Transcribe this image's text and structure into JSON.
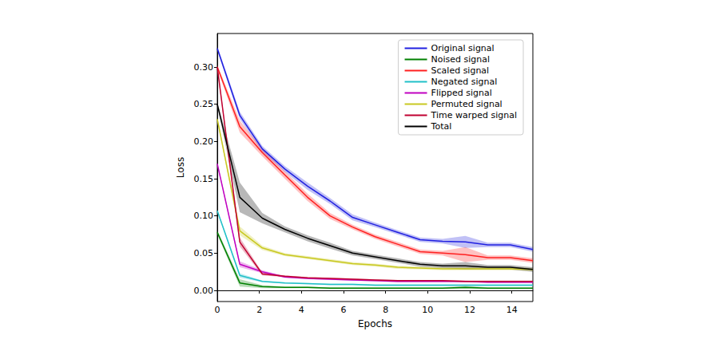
{
  "chart_data": {
    "type": "line",
    "x_label": "Epochs",
    "y_label": "Loss",
    "x": [
      0,
      1.07,
      2.14,
      3.21,
      4.29,
      5.36,
      6.43,
      7.5,
      8.57,
      9.64,
      10.71,
      11.79,
      12.86,
      13.93,
      15
    ],
    "xlim": [
      0,
      15
    ],
    "xticks": [
      0,
      2,
      4,
      6,
      8,
      10,
      12,
      14
    ],
    "ylim": [
      -0.015,
      0.345
    ],
    "yticks": [
      {
        "value": 0,
        "label": "0.00"
      },
      {
        "value": 0.05,
        "label": "0.05"
      },
      {
        "value": 0.1,
        "label": "0.10"
      },
      {
        "value": 0.15,
        "label": "0.15"
      },
      {
        "value": 0.2,
        "label": "0.20"
      },
      {
        "value": 0.25,
        "label": "0.25"
      },
      {
        "value": 0.3,
        "label": "0.30"
      }
    ],
    "grid": false,
    "legend": "upper right",
    "series": [
      {
        "name": "Original signal",
        "color": "#2020e0",
        "values": [
          0.325,
          0.235,
          0.19,
          0.163,
          0.14,
          0.12,
          0.098,
          0.088,
          0.078,
          0.068,
          0.066,
          0.065,
          0.061,
          0.061,
          0.055
        ],
        "errors": [
          0.003,
          0.005,
          0.004,
          0.004,
          0.005,
          0.004,
          0.004,
          0.003,
          0.003,
          0.003,
          0.003,
          0.008,
          0.003,
          0.003,
          0.003
        ]
      },
      {
        "name": "Noised signal",
        "color": "#008000",
        "values": [
          0.078,
          0.01,
          0.005,
          0.004,
          0.004,
          0.003,
          0.003,
          0.003,
          0.003,
          0.003,
          0.003,
          0.004,
          0.003,
          0.003,
          0.003
        ],
        "errors": [
          0.003,
          0.005,
          0.002,
          0.001,
          0.001,
          0.001,
          0.001,
          0.001,
          0.001,
          0.001,
          0.001,
          0.002,
          0.001,
          0.001,
          0.001
        ]
      },
      {
        "name": "Scaled signal",
        "color": "#ff2020",
        "values": [
          0.3,
          0.22,
          0.185,
          0.155,
          0.125,
          0.1,
          0.085,
          0.072,
          0.062,
          0.052,
          0.05,
          0.048,
          0.044,
          0.044,
          0.04
        ],
        "errors": [
          0.003,
          0.008,
          0.005,
          0.005,
          0.005,
          0.004,
          0.003,
          0.003,
          0.003,
          0.003,
          0.003,
          0.01,
          0.003,
          0.003,
          0.003
        ]
      },
      {
        "name": "Negated signal",
        "color": "#20c0c8",
        "values": [
          0.107,
          0.02,
          0.012,
          0.01,
          0.009,
          0.008,
          0.008,
          0.007,
          0.007,
          0.007,
          0.007,
          0.007,
          0.007,
          0.007,
          0.007
        ],
        "errors": [
          0.002,
          0.003,
          0.001,
          0.001,
          0.001,
          0.001,
          0.001,
          0.001,
          0.001,
          0.001,
          0.001,
          0.001,
          0.001,
          0.001,
          0.001
        ]
      },
      {
        "name": "Flipped signal",
        "color": "#c000c0",
        "values": [
          0.17,
          0.035,
          0.025,
          0.018,
          0.016,
          0.015,
          0.014,
          0.013,
          0.012,
          0.012,
          0.012,
          0.012,
          0.011,
          0.011,
          0.011
        ],
        "errors": [
          0.002,
          0.004,
          0.002,
          0.001,
          0.001,
          0.001,
          0.001,
          0.001,
          0.001,
          0.001,
          0.001,
          0.001,
          0.001,
          0.001,
          0.001
        ]
      },
      {
        "name": "Permuted signal",
        "color": "#c8c820",
        "values": [
          0.23,
          0.08,
          0.057,
          0.048,
          0.044,
          0.04,
          0.036,
          0.034,
          0.031,
          0.03,
          0.029,
          0.029,
          0.029,
          0.029,
          0.028
        ],
        "errors": [
          0.003,
          0.006,
          0.003,
          0.002,
          0.002,
          0.002,
          0.002,
          0.002,
          0.002,
          0.002,
          0.002,
          0.002,
          0.002,
          0.002,
          0.002
        ]
      },
      {
        "name": "Time warped signal",
        "color": "#c00030",
        "values": [
          0.3,
          0.065,
          0.022,
          0.019,
          0.017,
          0.016,
          0.015,
          0.014,
          0.013,
          0.013,
          0.013,
          0.012,
          0.012,
          0.012,
          0.012
        ],
        "errors": [
          0.003,
          0.006,
          0.002,
          0.001,
          0.001,
          0.001,
          0.001,
          0.001,
          0.001,
          0.001,
          0.001,
          0.001,
          0.001,
          0.001,
          0.001
        ]
      },
      {
        "name": "Total",
        "color": "#000000",
        "values": [
          0.25,
          0.125,
          0.097,
          0.082,
          0.07,
          0.06,
          0.05,
          0.045,
          0.04,
          0.035,
          0.033,
          0.033,
          0.031,
          0.031,
          0.028
        ],
        "errors": [
          0.003,
          0.02,
          0.007,
          0.004,
          0.004,
          0.004,
          0.003,
          0.003,
          0.003,
          0.003,
          0.003,
          0.005,
          0.003,
          0.003,
          0.003
        ]
      }
    ]
  }
}
